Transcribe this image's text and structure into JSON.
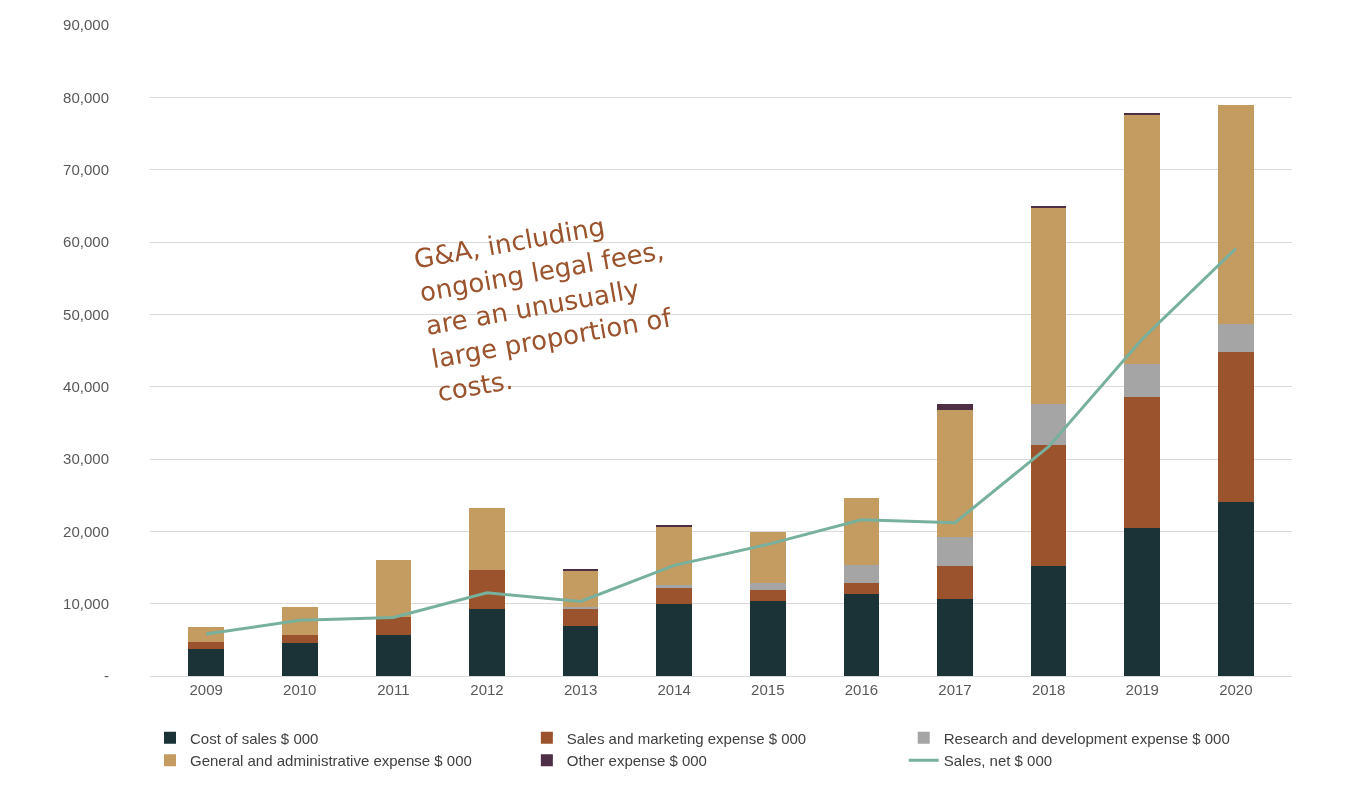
{
  "chart_data": {
    "type": "bar",
    "stacked": true,
    "categories": [
      "2009",
      "2010",
      "2011",
      "2012",
      "2013",
      "2014",
      "2015",
      "2016",
      "2017",
      "2018",
      "2019",
      "2020"
    ],
    "series": [
      {
        "name": "Cost of sales $ 000",
        "color": "#1b3237",
        "values": [
          3700,
          4600,
          5700,
          9300,
          6900,
          10000,
          10400,
          11300,
          10600,
          15200,
          20500,
          24000
        ]
      },
      {
        "name": "Sales and marketing expense $ 000",
        "color": "#9a532c",
        "values": [
          1000,
          1100,
          2500,
          5400,
          2500,
          2100,
          1500,
          1500,
          4600,
          16700,
          18100,
          20800
        ]
      },
      {
        "name": "Research and development expense $ 000",
        "color": "#a5a5a5",
        "values": [
          0,
          0,
          0,
          0,
          200,
          500,
          900,
          2600,
          4000,
          5700,
          4600,
          3800
        ]
      },
      {
        "name": "General and administrative expense $ 000",
        "color": "#c49b61",
        "values": [
          2100,
          3900,
          7900,
          8500,
          5000,
          8000,
          7100,
          9200,
          17600,
          27100,
          34400,
          30300
        ]
      },
      {
        "name": "Other expense $ 000",
        "color": "#4f2f45",
        "values": [
          0,
          0,
          0,
          0,
          200,
          200,
          0,
          0,
          800,
          200,
          100,
          0
        ]
      },
      {
        "name": "Sales, net $ 000",
        "type": "line",
        "color": "#78b09e",
        "values": [
          5800,
          7700,
          8100,
          11500,
          10300,
          15300,
          18200,
          21600,
          21200,
          31700,
          46600,
          59100
        ]
      }
    ],
    "ylim": [
      0,
      90000
    ],
    "yticks": [
      {
        "value": 0,
        "label": "-"
      },
      {
        "value": 10000,
        "label": "10,000"
      },
      {
        "value": 20000,
        "label": "20,000"
      },
      {
        "value": 30000,
        "label": "30,000"
      },
      {
        "value": 40000,
        "label": "40,000"
      },
      {
        "value": 50000,
        "label": "50,000"
      },
      {
        "value": 60000,
        "label": "60,000"
      },
      {
        "value": 70000,
        "label": "70,000"
      },
      {
        "value": 80000,
        "label": "80,000"
      },
      {
        "value": 90000,
        "label": "90,000"
      }
    ],
    "grid": "y",
    "legend": "bottom",
    "annotations": [
      "G&A, including\nongoing legal fees,\nare an unusually\nlarge proportion of\ncosts."
    ]
  }
}
